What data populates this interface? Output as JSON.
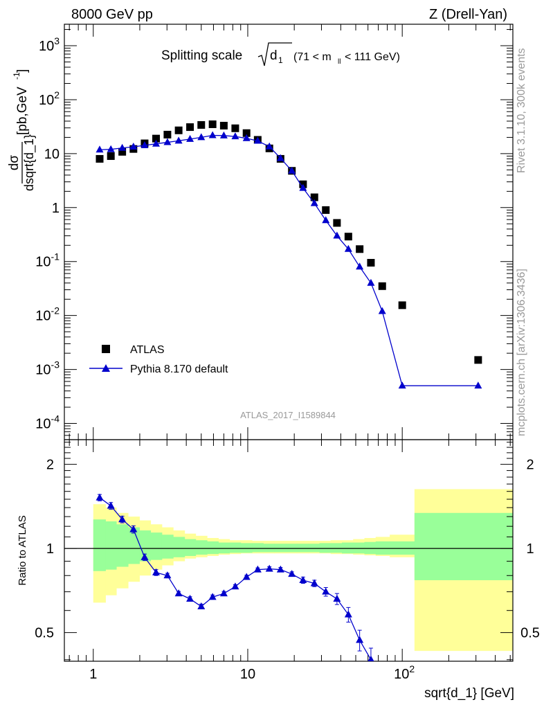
{
  "header": {
    "left": "8000 GeV pp",
    "right": "Z (Drell-Yan)"
  },
  "side_labels": {
    "rivet": "Rivet 3.1.10,  300k events",
    "mcplots": "mcplots.cern.ch [arXiv:1306.3436]"
  },
  "chart_data": [
    {
      "type": "scatter",
      "panel": "main",
      "title_prefix": "Splitting scale",
      "title_symbol": "d",
      "title_symbol_sub": "1",
      "title_cut_open": "(71 < m",
      "title_cut_sub": "ll",
      "title_cut_close": " < 111 GeV)",
      "watermark": "ATLAS_2017_I1589844",
      "ylabel_top": "dσ",
      "ylabel_bottom": "dsqrt{d_1}",
      "ylabel_unit": "[pb,GeV",
      "ylabel_unit_exp": "-1",
      "ylabel_unit_close": "]",
      "xscale": "log",
      "yscale": "log",
      "xlim": [
        0.65,
        520
      ],
      "ylim": [
        5e-05,
        2500
      ],
      "ytick_labels": [
        {
          "v": 0.0001,
          "base": "10",
          "exp": "-4"
        },
        {
          "v": 0.001,
          "base": "10",
          "exp": "-3"
        },
        {
          "v": 0.01,
          "base": "10",
          "exp": "-2"
        },
        {
          "v": 0.1,
          "base": "10",
          "exp": "-1"
        },
        {
          "v": 1,
          "base": "1",
          "exp": ""
        },
        {
          "v": 10,
          "base": "10",
          "exp": ""
        },
        {
          "v": 100,
          "base": "10",
          "exp": "2"
        },
        {
          "v": 1000,
          "base": "10",
          "exp": "3"
        }
      ],
      "legend": {
        "position": "lower-left",
        "entries": [
          "ATLAS",
          "Pythia 8.170 default"
        ]
      },
      "series": [
        {
          "name": "ATLAS",
          "marker": "square",
          "color": "#000000",
          "x": [
            1.1,
            1.3,
            1.54,
            1.82,
            2.15,
            2.55,
            3.02,
            3.57,
            4.23,
            5.0,
            5.92,
            7.0,
            8.3,
            9.82,
            11.6,
            13.8,
            16.3,
            19.3,
            22.8,
            27.0,
            32.0,
            37.8,
            44.8,
            53.0,
            62.7,
            74.2,
            100.0,
            310.0
          ],
          "y": [
            8.0,
            9.0,
            10.8,
            12.2,
            15.5,
            19.0,
            22.5,
            27.0,
            31.0,
            34.0,
            35.0,
            33.0,
            29.5,
            24.0,
            18.0,
            12.5,
            8.0,
            4.8,
            2.7,
            1.55,
            0.9,
            0.52,
            0.29,
            0.17,
            0.095,
            0.035,
            0.0155,
            0.0015
          ]
        },
        {
          "name": "Pythia 8.170 default",
          "marker": "triangle",
          "color": "#0000cc",
          "x": [
            1.1,
            1.3,
            1.54,
            1.82,
            2.15,
            2.55,
            3.02,
            3.57,
            4.23,
            5.0,
            5.92,
            7.0,
            8.3,
            9.82,
            11.6,
            13.8,
            16.3,
            19.3,
            22.8,
            27.0,
            32.0,
            37.8,
            44.8,
            53.0,
            62.7,
            74.2,
            100.0,
            310.0
          ],
          "y": [
            11.8,
            12.0,
            12.7,
            13.4,
            14.2,
            15.2,
            16.2,
            17.3,
            18.6,
            20.0,
            21.8,
            21.6,
            20.8,
            19.2,
            17.2,
            13.5,
            8.2,
            4.8,
            2.3,
            1.2,
            0.58,
            0.3,
            0.17,
            0.08,
            0.04,
            0.012,
            0.0005,
            0.0005
          ]
        }
      ]
    },
    {
      "type": "line",
      "panel": "ratio",
      "ylabel": "Ratio to ATLAS",
      "xlabel": "sqrt{d_1} [GeV]",
      "xscale": "log",
      "yscale": "log",
      "xlim": [
        0.65,
        520
      ],
      "ylim": [
        0.395,
        2.45
      ],
      "ytick_labels": [
        {
          "v": 0.5,
          "label": "0.5"
        },
        {
          "v": 1,
          "label": "1"
        },
        {
          "v": 2,
          "label": "2"
        }
      ],
      "xtick_labels": [
        {
          "v": 1,
          "base": "1",
          "exp": ""
        },
        {
          "v": 10,
          "base": "10",
          "exp": ""
        },
        {
          "v": 100,
          "base": "10",
          "exp": "2"
        }
      ],
      "bands": {
        "edges": [
          1.0,
          1.2,
          1.41,
          1.68,
          1.99,
          2.35,
          2.78,
          3.29,
          3.9,
          4.6,
          5.45,
          6.45,
          7.62,
          9.0,
          10.65,
          12.6,
          14.9,
          17.6,
          20.8,
          24.6,
          29.1,
          34.4,
          40.7,
          48.1,
          56.9,
          67.3,
          83.0,
          120.0,
          520.0
        ],
        "yellow_hi": [
          1.44,
          1.4,
          1.34,
          1.3,
          1.26,
          1.22,
          1.19,
          1.16,
          1.13,
          1.11,
          1.09,
          1.08,
          1.07,
          1.07,
          1.065,
          1.065,
          1.065,
          1.065,
          1.065,
          1.065,
          1.065,
          1.07,
          1.07,
          1.08,
          1.09,
          1.1,
          1.12,
          1.63
        ],
        "yellow_lo": [
          0.64,
          0.68,
          0.72,
          0.76,
          0.8,
          0.84,
          0.87,
          0.9,
          0.92,
          0.93,
          0.94,
          0.95,
          0.955,
          0.96,
          0.96,
          0.96,
          0.96,
          0.96,
          0.96,
          0.96,
          0.96,
          0.955,
          0.955,
          0.95,
          0.945,
          0.94,
          0.93,
          0.43
        ],
        "green_hi": [
          1.27,
          1.25,
          1.22,
          1.19,
          1.16,
          1.14,
          1.12,
          1.1,
          1.08,
          1.07,
          1.06,
          1.05,
          1.05,
          1.045,
          1.045,
          1.04,
          1.04,
          1.04,
          1.04,
          1.04,
          1.045,
          1.045,
          1.05,
          1.05,
          1.055,
          1.06,
          1.06,
          1.34
        ],
        "green_lo": [
          0.83,
          0.84,
          0.86,
          0.88,
          0.9,
          0.91,
          0.92,
          0.93,
          0.94,
          0.95,
          0.955,
          0.96,
          0.965,
          0.965,
          0.97,
          0.97,
          0.97,
          0.97,
          0.97,
          0.97,
          0.965,
          0.965,
          0.96,
          0.96,
          0.955,
          0.95,
          0.95,
          0.77
        ],
        "yellow_color": "#ffff99",
        "green_color": "#99ff99"
      },
      "series": [
        {
          "name": "Pythia 8.170 default",
          "marker": "triangle",
          "color": "#0000cc",
          "x": [
            1.1,
            1.3,
            1.54,
            1.82,
            2.15,
            2.55,
            3.02,
            3.57,
            4.23,
            5.0,
            5.92,
            7.0,
            8.3,
            9.82,
            11.6,
            13.8,
            16.3,
            19.3,
            22.8,
            27.0,
            32.0,
            37.8,
            44.8,
            53.0,
            62.7,
            74.2
          ],
          "y": [
            1.52,
            1.42,
            1.27,
            1.17,
            0.93,
            0.82,
            0.8,
            0.69,
            0.66,
            0.62,
            0.67,
            0.69,
            0.73,
            0.79,
            0.84,
            0.845,
            0.84,
            0.81,
            0.77,
            0.75,
            0.7,
            0.66,
            0.58,
            0.47,
            0.4,
            0.32
          ],
          "err": [
            0.04,
            0.04,
            0.035,
            0.035,
            0.025,
            0.02,
            0.015,
            0.012,
            0.012,
            0.012,
            0.012,
            0.012,
            0.012,
            0.012,
            0.012,
            0.015,
            0.015,
            0.015,
            0.02,
            0.02,
            0.025,
            0.03,
            0.035,
            0.04,
            0.04,
            0.05
          ]
        }
      ]
    }
  ]
}
